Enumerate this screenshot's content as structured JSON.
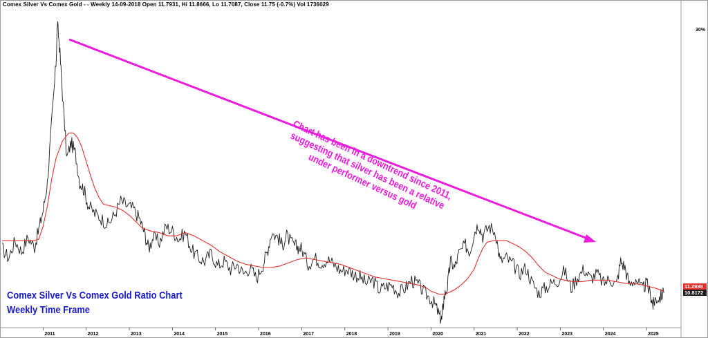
{
  "header": {
    "text": "Comex Silver Vs Comex Gold -  - Weekly 14-09-2018 Open 11.7931, Hi 11.8666, Lo 11.7087, Close 11.75 (-0.7%) Vol 1736029"
  },
  "caption": {
    "line1": "Comex Silver Vs Comex Gold Ratio Chart",
    "line2": "Weekly Time Frame"
  },
  "annotation": {
    "line1": "Chart has been in a downtrend since 2011,",
    "line2": "suggesting that silver has been a relative",
    "line3": "under performer versus gold"
  },
  "right_axis": {
    "pct_label": "30%",
    "ma_value": "11.2998",
    "last_value": "10.8172"
  },
  "colors": {
    "price": "#1a1a1a",
    "moving_average": "#e4322b",
    "annotation": "#ee1bdf",
    "caption": "#1a1acc"
  },
  "chart_data": {
    "type": "line",
    "title": "",
    "xlabel": "",
    "ylabel": "",
    "x_ticks": [
      "2011",
      "2012",
      "2013",
      "2014",
      "2015",
      "2016",
      "2017",
      "2018",
      "2019",
      "2020",
      "2021",
      "2022",
      "2023",
      "2024",
      "2025"
    ],
    "xlim": [
      2010.0,
      2025.8
    ],
    "ylim": [
      9.8,
      30.5
    ],
    "series": [
      {
        "role": "price",
        "x": [
          2010.05,
          2010.2,
          2010.35,
          2010.5,
          2010.65,
          2010.8,
          2010.9,
          2011.0,
          2011.1,
          2011.2,
          2011.3,
          2011.33,
          2011.38,
          2011.45,
          2011.55,
          2011.65,
          2011.75,
          2011.85,
          2011.95,
          2012.05,
          2012.2,
          2012.35,
          2012.5,
          2012.65,
          2012.8,
          2012.95,
          2013.1,
          2013.25,
          2013.35,
          2013.45,
          2013.55,
          2013.7,
          2013.85,
          2014.0,
          2014.15,
          2014.3,
          2014.45,
          2014.6,
          2014.75,
          2014.9,
          2015.05,
          2015.2,
          2015.35,
          2015.5,
          2015.65,
          2015.8,
          2015.95,
          2016.1,
          2016.2,
          2016.3,
          2016.45,
          2016.55,
          2016.65,
          2016.8,
          2016.9,
          2017.0,
          2017.15,
          2017.3,
          2017.45,
          2017.6,
          2017.75,
          2017.9,
          2018.05,
          2018.2,
          2018.35,
          2018.5,
          2018.65,
          2018.8,
          2018.95,
          2019.1,
          2019.25,
          2019.4,
          2019.55,
          2019.7,
          2019.85,
          2020.0,
          2020.1,
          2020.2,
          2020.25,
          2020.3,
          2020.38,
          2020.45,
          2020.55,
          2020.65,
          2020.8,
          2020.9,
          2021.0,
          2021.1,
          2021.2,
          2021.35,
          2021.5,
          2021.6,
          2021.75,
          2021.9,
          2022.05,
          2022.2,
          2022.35,
          2022.5,
          2022.65,
          2022.8,
          2022.95,
          2023.1,
          2023.25,
          2023.4,
          2023.55,
          2023.7,
          2023.85,
          2024.0,
          2024.15,
          2024.3,
          2024.4,
          2024.5,
          2024.6,
          2024.75,
          2024.9,
          2025.0,
          2025.1,
          2025.15,
          2025.2,
          2025.3,
          2025.4
        ],
        "y": [
          14.8,
          14.2,
          15.3,
          14.6,
          15.5,
          14.9,
          16.0,
          17.2,
          19.0,
          22.8,
          26.5,
          29.0,
          27.6,
          24.5,
          20.5,
          21.5,
          20.8,
          19.0,
          18.5,
          17.5,
          17.0,
          16.7,
          16.3,
          16.9,
          17.8,
          17.5,
          17.3,
          16.6,
          15.8,
          14.8,
          15.5,
          15.2,
          16.2,
          15.9,
          15.4,
          15.8,
          14.7,
          14.2,
          14.0,
          14.5,
          13.7,
          14.0,
          13.5,
          13.8,
          13.2,
          13.6,
          12.9,
          13.8,
          14.6,
          15.8,
          15.5,
          15.0,
          15.6,
          15.0,
          14.9,
          14.8,
          13.8,
          14.2,
          13.9,
          14.1,
          13.8,
          13.4,
          13.5,
          13.2,
          13.0,
          12.6,
          12.8,
          12.2,
          12.4,
          12.5,
          12.0,
          12.3,
          12.8,
          12.5,
          12.0,
          11.6,
          11.2,
          10.5,
          10.3,
          11.7,
          12.4,
          14.0,
          13.6,
          14.5,
          15.0,
          14.6,
          15.8,
          16.4,
          15.6,
          16.2,
          15.8,
          14.0,
          14.2,
          13.8,
          13.2,
          13.6,
          12.6,
          12.0,
          12.3,
          12.6,
          12.8,
          13.4,
          12.3,
          13.0,
          13.5,
          12.9,
          13.2,
          12.6,
          12.9,
          12.5,
          14.0,
          13.6,
          12.5,
          12.9,
          12.2,
          12.6,
          11.8,
          11.2,
          11.6,
          11.7,
          12.0
        ]
      },
      {
        "role": "moving_average",
        "x": [
          2010.05,
          2010.3,
          2010.6,
          2010.8,
          2010.9,
          2011.0,
          2011.1,
          2011.2,
          2011.3,
          2011.45,
          2011.6,
          2011.7,
          2011.8,
          2011.9,
          2012.0,
          2012.1,
          2012.2,
          2012.3,
          2012.4,
          2012.55,
          2012.7,
          2012.85,
          2013.0,
          2013.15,
          2013.3,
          2013.5,
          2013.7,
          2013.9,
          2014.1,
          2014.3,
          2014.5,
          2014.7,
          2014.9,
          2015.1,
          2015.3,
          2015.5,
          2015.7,
          2015.9,
          2016.1,
          2016.3,
          2016.5,
          2016.7,
          2016.9,
          2017.1,
          2017.3,
          2017.5,
          2017.7,
          2017.9,
          2018.1,
          2018.3,
          2018.5,
          2018.7,
          2018.9,
          2019.1,
          2019.3,
          2019.5,
          2019.7,
          2019.9,
          2020.0,
          2020.1,
          2020.2,
          2020.3,
          2020.4,
          2020.55,
          2020.7,
          2020.85,
          2021.0,
          2021.1,
          2021.2,
          2021.3,
          2021.45,
          2021.6,
          2021.75,
          2021.9,
          2022.05,
          2022.2,
          2022.35,
          2022.5,
          2022.65,
          2022.8,
          2022.95,
          2023.1,
          2023.3,
          2023.5,
          2023.7,
          2023.9,
          2024.1,
          2024.3,
          2024.5,
          2024.7,
          2024.9,
          2025.05,
          2025.2,
          2025.4
        ],
        "y": [
          15.3,
          15.3,
          15.3,
          15.3,
          15.4,
          16.2,
          17.5,
          19.2,
          20.5,
          21.6,
          22.1,
          22.1,
          21.8,
          21.2,
          20.3,
          19.4,
          18.6,
          18.0,
          17.6,
          17.5,
          17.4,
          17.2,
          16.9,
          16.5,
          16.1,
          15.9,
          15.8,
          15.6,
          15.6,
          15.8,
          15.6,
          15.3,
          15.0,
          14.6,
          14.3,
          14.0,
          13.8,
          13.7,
          13.6,
          13.6,
          13.7,
          13.9,
          14.1,
          14.2,
          14.1,
          14.0,
          13.9,
          13.8,
          13.6,
          13.4,
          13.2,
          13.0,
          12.9,
          12.8,
          12.7,
          12.6,
          12.5,
          12.3,
          12.1,
          12.0,
          11.9,
          11.9,
          12.0,
          12.2,
          12.5,
          12.9,
          13.5,
          14.2,
          14.8,
          15.2,
          15.3,
          15.3,
          15.3,
          15.1,
          14.9,
          14.6,
          14.2,
          13.7,
          13.3,
          13.1,
          12.9,
          12.8,
          12.7,
          12.7,
          12.8,
          12.8,
          12.8,
          12.7,
          12.6,
          12.6,
          12.5,
          12.4,
          12.3,
          12.1
        ]
      }
    ]
  }
}
